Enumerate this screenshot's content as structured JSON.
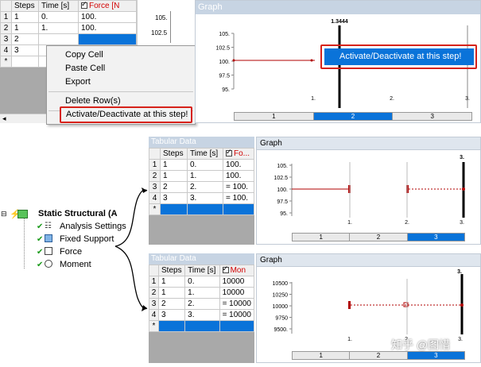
{
  "top_table": {
    "headers": [
      "Steps",
      "Time [s]",
      "Force [N"
    ],
    "rows": [
      {
        "num": "1",
        "step": "1",
        "time": "0.",
        "val": "100."
      },
      {
        "num": "2",
        "step": "1",
        "time": "1.",
        "val": "100."
      },
      {
        "num": "3",
        "step": "2",
        "time": "",
        "val": ""
      },
      {
        "num": "4",
        "step": "3",
        "time": "",
        "val": ""
      },
      {
        "num": "*",
        "step": "",
        "time": "",
        "val": ""
      }
    ]
  },
  "top_graph_ticks": [
    "105.",
    "102.5"
  ],
  "context_menu": {
    "items": [
      "Copy Cell",
      "Paste Cell",
      "Export",
      "Delete Row(s)",
      "Activate/Deactivate at this step!"
    ]
  },
  "top_graph": {
    "title": "Graph",
    "marker_label": "1.3444",
    "y_ticks": [
      "105.",
      "102.5",
      "100.",
      "97.5",
      "95."
    ],
    "x_ticks": [
      "1.",
      "2.",
      "3."
    ],
    "steps": [
      "1",
      "2",
      "3"
    ],
    "popup_label": "Activate/Deactivate at this step!"
  },
  "tree": {
    "root": "Static Structural (A",
    "items": [
      "Analysis Settings",
      "Fixed Support",
      "Force",
      "Moment"
    ]
  },
  "mid_table": {
    "title": "Tabular Data",
    "headers": [
      "Steps",
      "Time [s]",
      "Fo..."
    ],
    "rows": [
      {
        "num": "1",
        "step": "1",
        "time": "0.",
        "val": "100."
      },
      {
        "num": "2",
        "step": "1",
        "time": "1.",
        "val": "100."
      },
      {
        "num": "3",
        "step": "2",
        "time": "2.",
        "val": "= 100."
      },
      {
        "num": "4",
        "step": "3",
        "time": "3.",
        "val": "= 100."
      },
      {
        "num": "*",
        "step": "",
        "time": "",
        "val": ""
      }
    ]
  },
  "mid_graph": {
    "title": "Graph",
    "marker_label": "3.",
    "y_ticks": [
      "105.",
      "102.5",
      "100.",
      "97.5",
      "95."
    ],
    "x_ticks": [
      "1.",
      "2.",
      "3."
    ],
    "steps": [
      "1",
      "2",
      "3"
    ]
  },
  "bot_table": {
    "title": "Tabular Data",
    "headers": [
      "Steps",
      "Time [s]",
      "Mon"
    ],
    "rows": [
      {
        "num": "1",
        "step": "1",
        "time": "0.",
        "val": "10000"
      },
      {
        "num": "2",
        "step": "1",
        "time": "1.",
        "val": "10000"
      },
      {
        "num": "3",
        "step": "2",
        "time": "2.",
        "val": "= 10000"
      },
      {
        "num": "4",
        "step": "3",
        "time": "3.",
        "val": "= 10000"
      },
      {
        "num": "*",
        "step": "",
        "time": "",
        "val": ""
      }
    ]
  },
  "bot_graph": {
    "title": "Graph",
    "marker_label": "3.",
    "y_ticks": [
      "10500",
      "10250",
      "10000",
      "9750",
      "9500."
    ],
    "x_ticks": [
      "1.",
      "2.",
      "3."
    ],
    "steps": [
      "1",
      "2",
      "3"
    ]
  },
  "watermark": "知乎 @图惜",
  "colors": {
    "selection": "#0a73d9",
    "highlight": "#d6221a",
    "panel_title": "#c7d4e3",
    "line": "#b00000"
  }
}
